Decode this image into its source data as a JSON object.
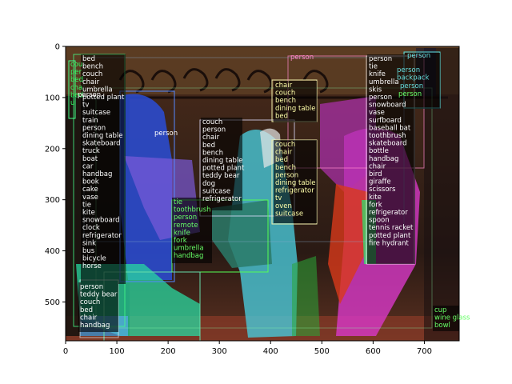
{
  "figure": {
    "x_ticks": [
      "0",
      "100",
      "200",
      "300",
      "400",
      "500",
      "600",
      "700"
    ],
    "y_ticks": [
      "0",
      "100",
      "200",
      "300",
      "400",
      "500"
    ]
  },
  "label_groups": [
    {
      "x": 103,
      "y": 76,
      "color": "#ffffff",
      "items": [
        "bed",
        "bench",
        "couch",
        "chair",
        "umbrella",
        "potted plant",
        "tv",
        "suitcase",
        "train",
        "person",
        "dining table",
        "skateboard",
        "truck",
        "boat",
        "car",
        "handbag",
        "book",
        "cake",
        "vase",
        "tie",
        "kite",
        "snowboard",
        "clock",
        "refrigerator",
        "sink",
        "bus",
        "bicycle",
        "horse"
      ]
    },
    {
      "x": 88,
      "y": 83,
      "color": "#33ff66",
      "items": [
        "cou",
        "per",
        "bed",
        "cha",
        "bed",
        "u"
      ]
    },
    {
      "x": 97,
      "y": 121,
      "color": "#ffffff",
      "items": [
        "person"
      ]
    },
    {
      "x": 193,
      "y": 169,
      "color": "#ffffff",
      "items": [
        "person"
      ]
    },
    {
      "x": 253,
      "y": 155,
      "color": "#ffffff",
      "items": [
        "couch",
        "person",
        "chair",
        "bed",
        "bench",
        "dining table",
        "potted plant",
        "teddy bear",
        "dog",
        "suitcase",
        "refrigerator"
      ]
    },
    {
      "x": 217,
      "y": 255,
      "color": "#66ff66",
      "items": [
        "tie",
        "toothbrush",
        "person",
        "remote",
        "knife",
        "fork",
        "umbrella",
        "handbag"
      ]
    },
    {
      "x": 344,
      "y": 109,
      "color": "#ffffaa",
      "items": [
        "chair",
        "couch",
        "bench",
        "dining table",
        "bed"
      ]
    },
    {
      "x": 344,
      "y": 183,
      "color": "#ffffaa",
      "items": [
        "couch",
        "chair",
        "bed",
        "bench",
        "person",
        "dining table",
        "refrigerator",
        "tv",
        "oven",
        "suitcase"
      ]
    },
    {
      "x": 363,
      "y": 74,
      "color": "#ff88cc",
      "items": [
        "person"
      ]
    },
    {
      "x": 461,
      "y": 76,
      "color": "#ffffff",
      "items": [
        "person",
        "tie",
        "knife",
        "umbrella",
        "skis",
        "person",
        "snowboard",
        "vase",
        "surfboard",
        "baseball bat",
        "toothbrush",
        "skateboard",
        "bottle",
        "handbag",
        "chair",
        "bird",
        "giraffe",
        "scissors",
        "kite",
        "fork",
        "refrigerator",
        "spoon",
        "tennis racket",
        "potted plant",
        "fire hydrant"
      ]
    },
    {
      "x": 509,
      "y": 72,
      "color": "#66dddd",
      "items": [
        "person"
      ]
    },
    {
      "x": 496,
      "y": 90,
      "color": "#66dddd",
      "items": [
        "person",
        "backpack"
      ]
    },
    {
      "x": 500,
      "y": 110,
      "color": "#66dddd",
      "items": [
        "person"
      ]
    },
    {
      "x": 498,
      "y": 120,
      "color": "#66ff66",
      "items": [
        "person"
      ]
    },
    {
      "x": 543,
      "y": 390,
      "color": "#66ff66",
      "items": [
        "cup",
        "wine glass",
        "bowl"
      ]
    },
    {
      "x": 100,
      "y": 361,
      "color": "#ffffff",
      "items": [
        "person",
        "teddy bear",
        "couch",
        "bed",
        "chair",
        "handbag"
      ]
    }
  ]
}
